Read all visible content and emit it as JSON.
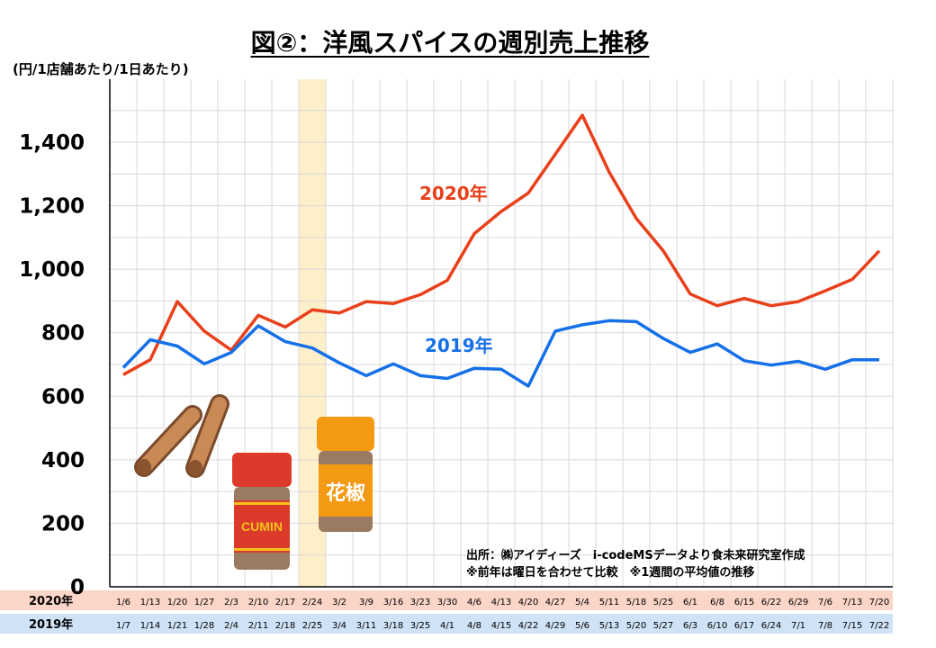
{
  "title": "図②：洋風スパイスの週別売上推移",
  "unit_label": "(円/1店舗あたり/1日あたり)",
  "source": {
    "line1": "出所：㈱アイディーズ　i-codeMSデータより食未来研究室作成",
    "line2": "※前年は曜日を合わせて比較　※1週間の平均値の推移"
  },
  "illustrations": {
    "cinnamon": "cinnamon-sticks",
    "cumin_label": "CUMIN",
    "sansho_label": "花椒"
  },
  "chart_data": {
    "type": "line",
    "ylim": [
      0,
      1500
    ],
    "yticks": [
      0,
      200,
      400,
      600,
      800,
      1000,
      1200,
      1400
    ],
    "ytick_labels": [
      "0",
      "200",
      "400",
      "600",
      "800",
      "1,000",
      "1,200",
      "1,400"
    ],
    "grid": true,
    "highlight_category_index": 7,
    "highlight_color": "#fdefc8",
    "row_labels": [
      "2020年",
      "2019年"
    ],
    "x_2020": [
      "1/6",
      "1/13",
      "1/20",
      "1/27",
      "2/3",
      "2/10",
      "2/17",
      "2/24",
      "3/2",
      "3/9",
      "3/16",
      "3/23",
      "3/30",
      "4/6",
      "4/13",
      "4/20",
      "4/27",
      "5/4",
      "5/11",
      "5/18",
      "5/25",
      "6/1",
      "6/8",
      "6/15",
      "6/22",
      "6/29",
      "7/6",
      "7/13",
      "7/20"
    ],
    "x_2019": [
      "1/7",
      "1/14",
      "1/21",
      "1/28",
      "2/4",
      "2/11",
      "2/18",
      "2/25",
      "3/4",
      "3/11",
      "3/18",
      "3/25",
      "4/1",
      "4/8",
      "4/15",
      "4/22",
      "4/29",
      "5/6",
      "5/13",
      "5/20",
      "5/27",
      "6/3",
      "6/10",
      "6/17",
      "6/24",
      "7/1",
      "7/8",
      "7/15",
      "7/22"
    ],
    "series": [
      {
        "name": "2020年",
        "color": "#e8401a",
        "row_color": "#fbd5c8",
        "values": [
          668,
          715,
          898,
          805,
          745,
          855,
          818,
          872,
          862,
          898,
          892,
          920,
          965,
          1112,
          1182,
          1240,
          1362,
          1485,
          1305,
          1160,
          1058,
          922,
          885,
          908,
          885,
          898,
          932,
          968,
          1058
        ]
      },
      {
        "name": "2019年",
        "color": "#1570e8",
        "row_color": "#cfe2f6",
        "values": [
          690,
          778,
          758,
          702,
          738,
          822,
          772,
          752,
          705,
          665,
          702,
          665,
          656,
          688,
          685,
          632,
          805,
          825,
          838,
          835,
          782,
          738,
          765,
          712,
          698,
          710,
          685,
          715,
          715
        ]
      }
    ]
  }
}
